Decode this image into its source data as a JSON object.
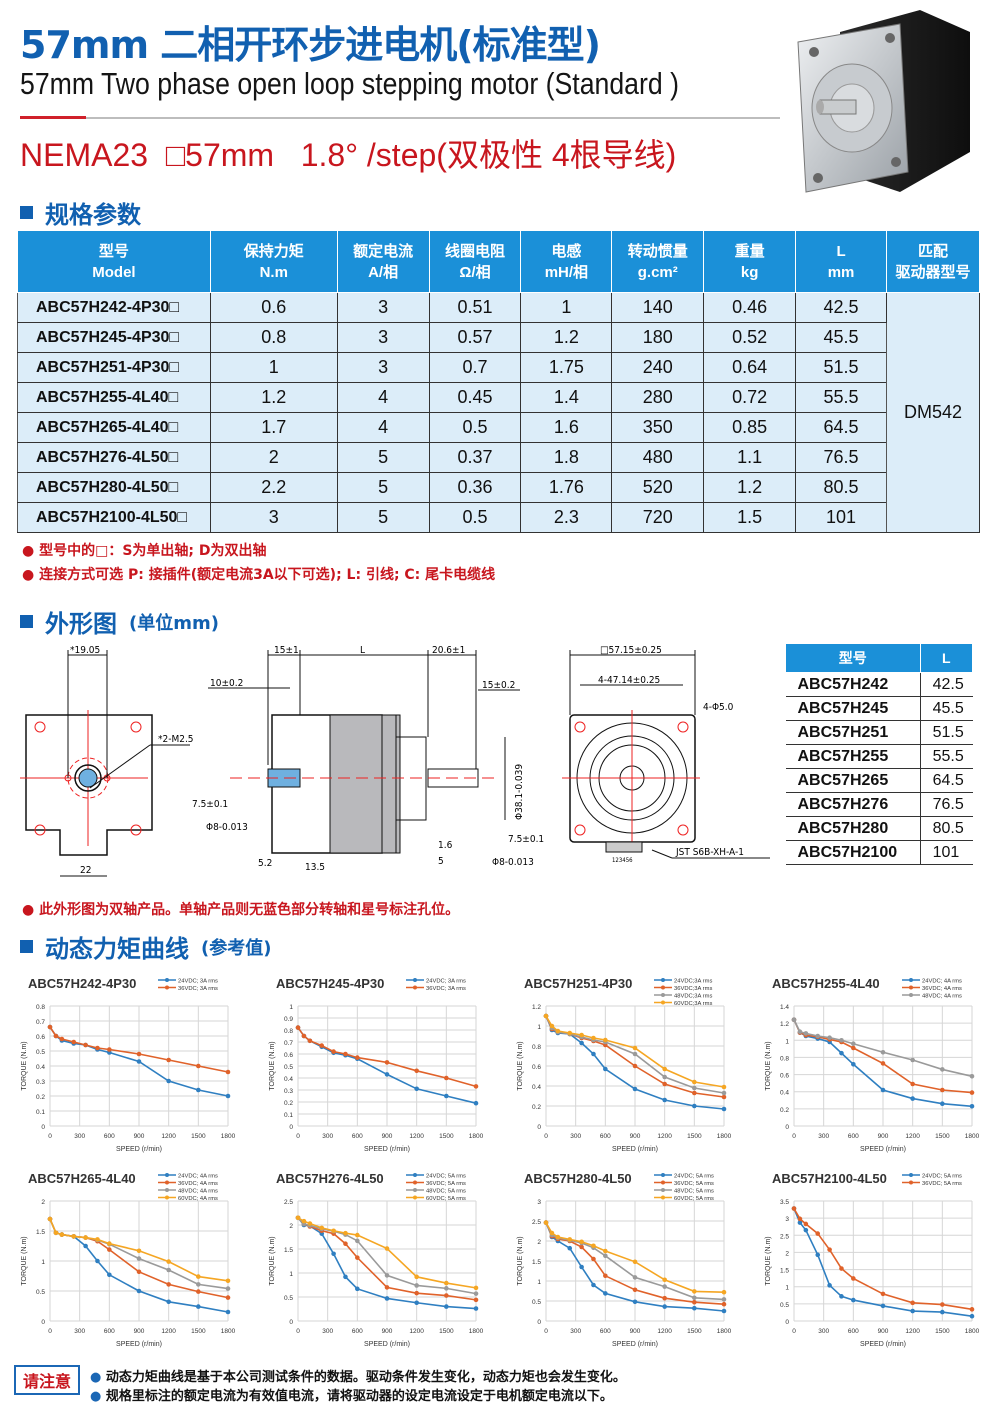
{
  "header": {
    "title": "57mm 二相开环步进电机(标准型)",
    "subtitle": "57mm Two phase open loop stepping motor (Standard )",
    "spec_line": "NEMA23  □57mm   1.8° /step(双极性 4根导线)"
  },
  "colors": {
    "brand_blue": "#1160b0",
    "header_blue": "#1b90d8",
    "accent_red": "#c8161e",
    "cell_bg": "#dcedf9",
    "series": {
      "24V": "#2f7fc1",
      "36V": "#e0622a",
      "48V": "#9a9a9a",
      "60V": "#f5a623"
    }
  },
  "specs": {
    "heading": "规格参数",
    "columns": [
      {
        "cn": "型号",
        "en": "Model"
      },
      {
        "cn": "保持力矩",
        "en": "N.m"
      },
      {
        "cn": "额定电流",
        "en": "A/相"
      },
      {
        "cn": "线圈电阻",
        "en": "Ω/相"
      },
      {
        "cn": "电感",
        "en": "mH/相"
      },
      {
        "cn": "转动惯量",
        "en": "g.cm²"
      },
      {
        "cn": "重量",
        "en": "kg"
      },
      {
        "cn": "L",
        "en": "mm"
      },
      {
        "cn": "匹配",
        "en": "驱动器型号"
      }
    ],
    "rows": [
      [
        "ABC57H242-4P30□",
        "0.6",
        "3",
        "0.51",
        "1",
        "140",
        "0.46",
        "42.5"
      ],
      [
        "ABC57H245-4P30□",
        "0.8",
        "3",
        "0.57",
        "1.2",
        "180",
        "0.52",
        "45.5"
      ],
      [
        "ABC57H251-4P30□",
        "1",
        "3",
        "0.7",
        "1.75",
        "240",
        "0.64",
        "51.5"
      ],
      [
        "ABC57H255-4L40□",
        "1.2",
        "4",
        "0.45",
        "1.4",
        "280",
        "0.72",
        "55.5"
      ],
      [
        "ABC57H265-4L40□",
        "1.7",
        "4",
        "0.5",
        "1.6",
        "350",
        "0.85",
        "64.5"
      ],
      [
        "ABC57H276-4L50□",
        "2",
        "5",
        "0.37",
        "1.8",
        "480",
        "1.1",
        "76.5"
      ],
      [
        "ABC57H280-4L50□",
        "2.2",
        "5",
        "0.36",
        "1.76",
        "520",
        "1.2",
        "80.5"
      ],
      [
        "ABC57H2100-4L50□",
        "3",
        "5",
        "0.5",
        "2.3",
        "720",
        "1.5",
        "101"
      ]
    ],
    "driver": "DM542",
    "notes": [
      "型号中的□：S为单出轴; D为双出轴",
      "连接方式可选 P: 接插件(额定电流3A以下可选); L: 引线; C: 尾卡电缆线"
    ]
  },
  "outline": {
    "heading": "外形图",
    "heading_unit": "(单位mm)",
    "dims": {
      "front_a": "*19.05",
      "front_b": "*2-M2.5",
      "front_c": "22",
      "side_a": "15±1",
      "side_b": "L",
      "side_c": "20.6±1",
      "side_d": "10±0.2",
      "side_e": "15±0.2",
      "side_f": "7.5±0.1",
      "side_g": "Φ8-0.013",
      "side_h": "Φ38.1-0.039",
      "side_i": "7.5±0.1",
      "side_j": "Φ8-0.013",
      "side_k": "5.2",
      "side_l": "13.5",
      "side_m": "1.6",
      "side_n": "5",
      "rear_a": "□57.15±0.25",
      "rear_b": "4-47.14±0.25",
      "rear_c": "4-Φ5.0",
      "rear_d": "JST S6B-XH-A-1",
      "rear_pins": "123456"
    },
    "l_table": {
      "headers": [
        "型号",
        "L"
      ],
      "rows": [
        [
          "ABC57H242",
          "42.5"
        ],
        [
          "ABC57H245",
          "45.5"
        ],
        [
          "ABC57H251",
          "51.5"
        ],
        [
          "ABC57H255",
          "55.5"
        ],
        [
          "ABC57H265",
          "64.5"
        ],
        [
          "ABC57H276",
          "76.5"
        ],
        [
          "ABC57H280",
          "80.5"
        ],
        [
          "ABC57H2100",
          "101"
        ]
      ]
    },
    "note": "此外形图为双轴产品。单轴产品则无蓝色部分转轴和星号标注孔位。"
  },
  "curves": {
    "heading": "动态力矩曲线",
    "heading_sub": "(参考值)"
  },
  "chart_data": [
    {
      "type": "line",
      "title": "ABC57H242-4P30",
      "xlabel": "SPEED (r/min)",
      "ylabel": "TORQUE (N.m)",
      "xlim": [
        0,
        1800
      ],
      "xticks": [
        0,
        300,
        600,
        900,
        1200,
        1500,
        1800
      ],
      "ylim": [
        0,
        0.8
      ],
      "ystep": 0.1,
      "grid": true,
      "legend": "top-right",
      "x": [
        0,
        60,
        120,
        240,
        360,
        480,
        600,
        900,
        1200,
        1500,
        1800
      ],
      "series": [
        {
          "name": "24VDC; 3A rms",
          "color": "#2f7fc1",
          "values": [
            0.66,
            0.6,
            0.57,
            0.55,
            0.54,
            0.51,
            0.49,
            0.43,
            0.3,
            0.24,
            0.2
          ]
        },
        {
          "name": "36VDC; 3A rms",
          "color": "#e0622a",
          "values": [
            0.66,
            0.6,
            0.58,
            0.56,
            0.54,
            0.52,
            0.51,
            0.48,
            0.44,
            0.4,
            0.36
          ]
        }
      ]
    },
    {
      "type": "line",
      "title": "ABC57H245-4P30",
      "xlabel": "SPEED (r/min)",
      "ylabel": "TORQUE (N.m)",
      "xlim": [
        0,
        1800
      ],
      "xticks": [
        0,
        300,
        600,
        900,
        1200,
        1500,
        1800
      ],
      "ylim": [
        0,
        1
      ],
      "ystep": 0.1,
      "grid": true,
      "legend": "top-right",
      "x": [
        0,
        60,
        120,
        240,
        360,
        480,
        600,
        900,
        1200,
        1500,
        1800
      ],
      "series": [
        {
          "name": "24VDC; 3A rms",
          "color": "#2f7fc1",
          "values": [
            0.82,
            0.75,
            0.71,
            0.66,
            0.61,
            0.59,
            0.56,
            0.43,
            0.31,
            0.25,
            0.19
          ]
        },
        {
          "name": "36VDC; 3A rms",
          "color": "#e0622a",
          "values": [
            0.82,
            0.75,
            0.71,
            0.67,
            0.62,
            0.6,
            0.57,
            0.53,
            0.46,
            0.4,
            0.33
          ]
        }
      ]
    },
    {
      "type": "line",
      "title": "ABC57H251-4P30",
      "xlabel": "SPEED (r/min)",
      "ylabel": "TORQUE (N.m)",
      "xlim": [
        0,
        1800
      ],
      "xticks": [
        0,
        300,
        600,
        900,
        1200,
        1500,
        1800
      ],
      "ylim": [
        0,
        1.2
      ],
      "ystep": 0.2,
      "grid": true,
      "legend": "top-right",
      "x": [
        0,
        60,
        120,
        240,
        360,
        480,
        600,
        900,
        1200,
        1500,
        1800
      ],
      "series": [
        {
          "name": "24VDC;3A rms",
          "color": "#2f7fc1",
          "values": [
            1.1,
            0.96,
            0.93,
            0.92,
            0.83,
            0.72,
            0.57,
            0.37,
            0.26,
            0.2,
            0.17
          ]
        },
        {
          "name": "36VDC;3A rms",
          "color": "#e0622a",
          "values": [
            1.1,
            0.97,
            0.94,
            0.92,
            0.88,
            0.85,
            0.81,
            0.6,
            0.42,
            0.33,
            0.29
          ]
        },
        {
          "name": "48VDC;3A rms",
          "color": "#9a9a9a",
          "values": [
            1.1,
            0.98,
            0.94,
            0.92,
            0.89,
            0.86,
            0.84,
            0.72,
            0.49,
            0.38,
            0.33
          ]
        },
        {
          "name": "60VDC;3A rms",
          "color": "#f5a623",
          "values": [
            1.1,
            1.0,
            0.95,
            0.93,
            0.91,
            0.88,
            0.86,
            0.78,
            0.57,
            0.44,
            0.39
          ]
        }
      ]
    },
    {
      "type": "line",
      "title": "ABC57H255-4L40",
      "xlabel": "SPEED (r/min)",
      "ylabel": "TORQUE (N.m)",
      "xlim": [
        0,
        1800
      ],
      "xticks": [
        0,
        300,
        600,
        900,
        1200,
        1500,
        1800
      ],
      "ylim": [
        0,
        1.4
      ],
      "ystep": 0.2,
      "grid": true,
      "legend": "top-right",
      "x": [
        0,
        60,
        120,
        240,
        360,
        480,
        600,
        900,
        1200,
        1500,
        1800
      ],
      "series": [
        {
          "name": "24VDC; 4A rms",
          "color": "#2f7fc1",
          "values": [
            1.24,
            1.09,
            1.05,
            1.02,
            0.98,
            0.85,
            0.72,
            0.42,
            0.32,
            0.26,
            0.23
          ]
        },
        {
          "name": "36VDC; 4A rms",
          "color": "#e0622a",
          "values": [
            1.24,
            1.09,
            1.06,
            1.04,
            1.01,
            0.98,
            0.91,
            0.73,
            0.49,
            0.42,
            0.39
          ]
        },
        {
          "name": "48VDC; 4A rms",
          "color": "#9a9a9a",
          "values": [
            1.24,
            1.1,
            1.08,
            1.05,
            1.03,
            1.0,
            0.96,
            0.86,
            0.77,
            0.66,
            0.58
          ]
        }
      ]
    },
    {
      "type": "line",
      "title": "ABC57H265-4L40",
      "xlabel": "SPEED (r/min)",
      "ylabel": "TORQUE (N.m)",
      "xlim": [
        0,
        1800
      ],
      "xticks": [
        0,
        300,
        600,
        900,
        1200,
        1500,
        1800
      ],
      "ylim": [
        0,
        2
      ],
      "ystep": 0.5,
      "grid": true,
      "legend": "top-right",
      "x": [
        0,
        60,
        120,
        240,
        360,
        480,
        600,
        900,
        1200,
        1500,
        1800
      ],
      "series": [
        {
          "name": "24VDC; 4A rms",
          "color": "#2f7fc1",
          "values": [
            1.7,
            1.47,
            1.44,
            1.41,
            1.25,
            1.0,
            0.77,
            0.5,
            0.32,
            0.24,
            0.15
          ]
        },
        {
          "name": "36VDC; 4A rms",
          "color": "#e0622a",
          "values": [
            1.7,
            1.47,
            1.44,
            1.41,
            1.39,
            1.33,
            1.19,
            0.82,
            0.61,
            0.49,
            0.39
          ]
        },
        {
          "name": "48VDC; 4A rms",
          "color": "#9a9a9a",
          "values": [
            1.7,
            1.47,
            1.44,
            1.41,
            1.39,
            1.35,
            1.28,
            1.04,
            0.85,
            0.61,
            0.54
          ]
        },
        {
          "name": "60VDC; 4A rms",
          "color": "#f5a623",
          "values": [
            1.7,
            1.47,
            1.44,
            1.41,
            1.39,
            1.36,
            1.29,
            1.17,
            0.99,
            0.74,
            0.67
          ]
        }
      ]
    },
    {
      "type": "line",
      "title": "ABC57H276-4L50",
      "xlabel": "SPEED (r/min)",
      "ylabel": "TORQUE (N.m)",
      "xlim": [
        0,
        1800
      ],
      "xticks": [
        0,
        300,
        600,
        900,
        1200,
        1500,
        1800
      ],
      "ylim": [
        0,
        2.5
      ],
      "ystep": 0.5,
      "grid": true,
      "legend": "top-right",
      "x": [
        0,
        60,
        120,
        240,
        360,
        480,
        600,
        900,
        1200,
        1500,
        1800
      ],
      "series": [
        {
          "name": "24VDC; 5A rms",
          "color": "#2f7fc1",
          "values": [
            2.15,
            2.0,
            1.98,
            1.82,
            1.4,
            0.92,
            0.67,
            0.47,
            0.38,
            0.3,
            0.26
          ]
        },
        {
          "name": "36VDC; 5A rms",
          "color": "#e0622a",
          "values": [
            2.15,
            2.02,
            1.97,
            1.88,
            1.82,
            1.61,
            1.32,
            0.7,
            0.58,
            0.53,
            0.44
          ]
        },
        {
          "name": "48VDC; 5A rms",
          "color": "#9a9a9a",
          "values": [
            2.15,
            2.02,
            1.99,
            1.92,
            1.87,
            1.8,
            1.67,
            0.95,
            0.74,
            0.68,
            0.57
          ]
        },
        {
          "name": "60VDC; 5A rms",
          "color": "#f5a623",
          "values": [
            2.15,
            2.08,
            2.03,
            1.94,
            1.88,
            1.83,
            1.79,
            1.51,
            0.92,
            0.79,
            0.69
          ]
        }
      ]
    },
    {
      "type": "line",
      "title": "ABC57H280-4L50",
      "xlabel": "SPEED (r/min)",
      "ylabel": "TORQUE (N.m)",
      "xlim": [
        0,
        1800
      ],
      "xticks": [
        0,
        300,
        600,
        900,
        1200,
        1500,
        1800
      ],
      "ylim": [
        0,
        3
      ],
      "ystep": 0.5,
      "grid": true,
      "legend": "top-right",
      "x": [
        0,
        60,
        120,
        240,
        360,
        480,
        600,
        900,
        1200,
        1500,
        1800
      ],
      "series": [
        {
          "name": "24VDC; 5A rms",
          "color": "#2f7fc1",
          "values": [
            2.46,
            2.1,
            2.0,
            1.82,
            1.35,
            0.9,
            0.69,
            0.48,
            0.36,
            0.32,
            0.25
          ]
        },
        {
          "name": "36VDC; 5A rms",
          "color": "#e0622a",
          "values": [
            2.46,
            2.12,
            2.05,
            2.0,
            1.85,
            1.55,
            1.13,
            0.78,
            0.57,
            0.47,
            0.42
          ]
        },
        {
          "name": "48VDC; 5A rms",
          "color": "#9a9a9a",
          "values": [
            2.46,
            2.15,
            2.08,
            2.02,
            1.95,
            1.83,
            1.63,
            1.09,
            0.86,
            0.58,
            0.54
          ]
        },
        {
          "name": "60VDC; 5A rms",
          "color": "#f5a623",
          "values": [
            2.46,
            2.2,
            2.1,
            2.04,
            1.98,
            1.88,
            1.75,
            1.48,
            1.03,
            0.74,
            0.72
          ]
        }
      ]
    },
    {
      "type": "line",
      "title": "ABC57H2100-4L50",
      "xlabel": "SPEED (r/min)",
      "ylabel": "TORQUE (N.m)",
      "xlim": [
        0,
        1800
      ],
      "xticks": [
        0,
        300,
        600,
        900,
        1200,
        1500,
        1800
      ],
      "ylim": [
        0,
        3.5
      ],
      "ystep": 0.5,
      "grid": true,
      "legend": "top-right",
      "x": [
        0,
        60,
        120,
        240,
        360,
        480,
        600,
        900,
        1200,
        1500,
        1800
      ],
      "series": [
        {
          "name": "24VDC; 5A rms",
          "color": "#2f7fc1",
          "values": [
            3.28,
            2.87,
            2.65,
            1.93,
            1.04,
            0.72,
            0.61,
            0.44,
            0.29,
            0.26,
            0.14
          ]
        },
        {
          "name": "36VDC; 5A rms",
          "color": "#e0622a",
          "values": [
            3.28,
            2.98,
            2.83,
            2.55,
            2.08,
            1.53,
            1.24,
            0.79,
            0.53,
            0.48,
            0.34
          ]
        }
      ]
    }
  ],
  "footer": {
    "badge": "请注意",
    "notes": [
      "动态力矩曲线是基于本公司测试条件的数据。驱动条件发生变化，动态力矩也会发生变化。",
      "规格里标注的额定电流为有效值电流，请将驱动器的设定电流设定于电机额定电流以下。"
    ]
  }
}
